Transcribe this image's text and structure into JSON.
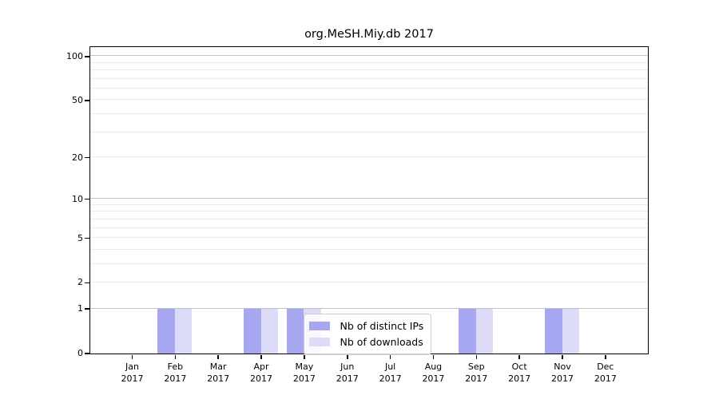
{
  "chart_data": {
    "type": "bar",
    "title": "org.MeSH.Miy.db 2017",
    "categories": [
      "Jan 2017",
      "Feb 2017",
      "Mar 2017",
      "Apr 2017",
      "May 2017",
      "Jun 2017",
      "Jul 2017",
      "Aug 2017",
      "Sep 2017",
      "Oct 2017",
      "Nov 2017",
      "Dec 2017"
    ],
    "series": [
      {
        "name": "Nb of distinct IPs",
        "color": "#a6a6f1",
        "values": [
          0,
          1,
          0,
          1,
          1,
          0,
          0,
          0,
          1,
          0,
          1,
          0
        ]
      },
      {
        "name": "Nb of downloads",
        "color": "#dcdcf8",
        "values": [
          0,
          1,
          0,
          1,
          1,
          0,
          0,
          0,
          1,
          0,
          1,
          0
        ]
      }
    ],
    "xlabel": "",
    "ylabel": "",
    "yscale": "log1p",
    "ylim": [
      0,
      116
    ],
    "yticks": [
      0,
      1,
      2,
      5,
      10,
      20,
      50,
      100
    ],
    "grid_major": [
      1,
      10,
      100
    ],
    "grid_minor": [
      2,
      3,
      4,
      5,
      6,
      7,
      8,
      9,
      20,
      30,
      40,
      50,
      60,
      70,
      80,
      90
    ],
    "grid": "on",
    "legend_position": "inside-bottom-center",
    "axis_color": "#000000",
    "grid_major_color": "#c2c2c2",
    "grid_minor_color": "#ececec",
    "background_color": "#ffffff"
  }
}
